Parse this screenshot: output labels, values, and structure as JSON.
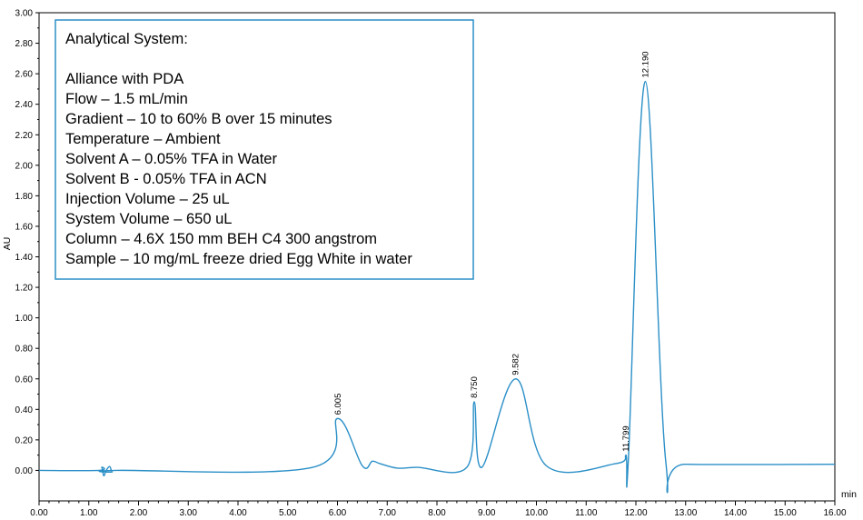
{
  "chart_data": {
    "type": "line",
    "xlabel": "min",
    "ylabel": "AU",
    "xlim": [
      0.0,
      16.0
    ],
    "ylim": [
      -0.2,
      3.0
    ],
    "x_ticks": [
      "0.00",
      "1.00",
      "2.00",
      "3.00",
      "4.00",
      "5.00",
      "6.00",
      "7.00",
      "8.00",
      "9.00",
      "10.00",
      "11.00",
      "12.00",
      "13.00",
      "14.00",
      "15.00",
      "16.00"
    ],
    "y_ticks": [
      "0.00",
      "0.20",
      "0.40",
      "0.60",
      "0.80",
      "1.00",
      "1.20",
      "1.40",
      "1.60",
      "1.80",
      "2.00",
      "2.20",
      "2.40",
      "2.60",
      "2.80",
      "3.00"
    ],
    "grid": false,
    "line_color": "#2a8fc7",
    "series": [
      {
        "x": [
          0.0,
          1.2,
          1.26,
          1.3,
          1.35,
          1.42,
          1.47,
          1.55,
          5.5,
          6.005,
          6.5,
          6.7,
          6.85,
          7.2,
          7.6,
          8.6,
          8.75,
          8.9,
          9.582,
          10.2,
          11.6,
          11.799,
          11.85,
          12.19,
          12.6,
          13.0,
          16.0
        ],
        "y": [
          0.0,
          0.0,
          0.02,
          -0.035,
          0.0,
          0.025,
          -0.01,
          0.0,
          0.02,
          0.34,
          0.03,
          0.06,
          0.045,
          0.015,
          0.02,
          0.02,
          0.45,
          0.02,
          0.6,
          0.03,
          0.045,
          0.1,
          0.08,
          2.55,
          0.06,
          0.04,
          0.04
        ]
      }
    ],
    "peak_labels": [
      {
        "x": 6.005,
        "y": 0.34,
        "label": "6.005"
      },
      {
        "x": 8.75,
        "y": 0.45,
        "label": "8.750"
      },
      {
        "x": 9.582,
        "y": 0.6,
        "label": "9.582"
      },
      {
        "x": 11.799,
        "y": 0.1,
        "label": "11.799"
      },
      {
        "x": 12.19,
        "y": 2.55,
        "label": "12.190"
      }
    ],
    "annotation": {
      "border_color": "#2a8fc7",
      "lines": [
        "Analytical System:",
        "",
        "Alliance with PDA",
        "Flow – 1.5 mL/min",
        "Gradient – 10 to 60% B over 15 minutes",
        "Temperature – Ambient",
        "Solvent A – 0.05% TFA in Water",
        "Solvent B -  0.05% TFA in ACN",
        "Injection Volume – 25 uL",
        "System Volume – 650 uL",
        "Column – 4.6X 150 mm BEH C4 300 angstrom",
        "Sample – 10 mg/mL freeze dried Egg White in water"
      ]
    }
  }
}
